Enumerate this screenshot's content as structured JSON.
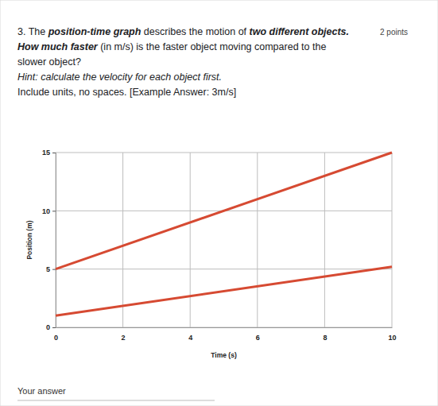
{
  "question": {
    "lines": [
      [
        {
          "text": "3. The ",
          "bold": false
        },
        {
          "text": "position-time graph",
          "bold": true
        },
        {
          "text": " describes the motion of ",
          "bold": false
        },
        {
          "text": "two different objects.",
          "bold": true
        }
      ],
      [
        {
          "text": "How much faster",
          "bold": true
        },
        {
          "text": " (in m/s) is the faster object moving compared to the",
          "bold": false
        }
      ],
      [
        {
          "text": "slower object?",
          "bold": false
        }
      ],
      [
        {
          "text": "Hint: calculate the velocity for each object first.",
          "bold": false
        }
      ],
      [
        {
          "text": "Include units, no spaces. [Example Answer: 3m/s]",
          "bold": false
        }
      ]
    ],
    "points": "2 points",
    "answer_label": "Your answer"
  },
  "chart_data": {
    "type": "line",
    "x_label": "Time (s)",
    "y_label": "Position (m)",
    "x": [
      0,
      10
    ],
    "series": [
      {
        "color": "#d64a32",
        "values": [
          5,
          15
        ]
      },
      {
        "color": "#d64a32",
        "values": [
          1,
          5.2
        ]
      }
    ],
    "xlim": [
      0,
      10
    ],
    "xticks": [
      0,
      2,
      4,
      6,
      8,
      10
    ],
    "ylim": [
      0,
      15
    ],
    "yticks": [
      0,
      5,
      10,
      15
    ],
    "grid": true
  }
}
